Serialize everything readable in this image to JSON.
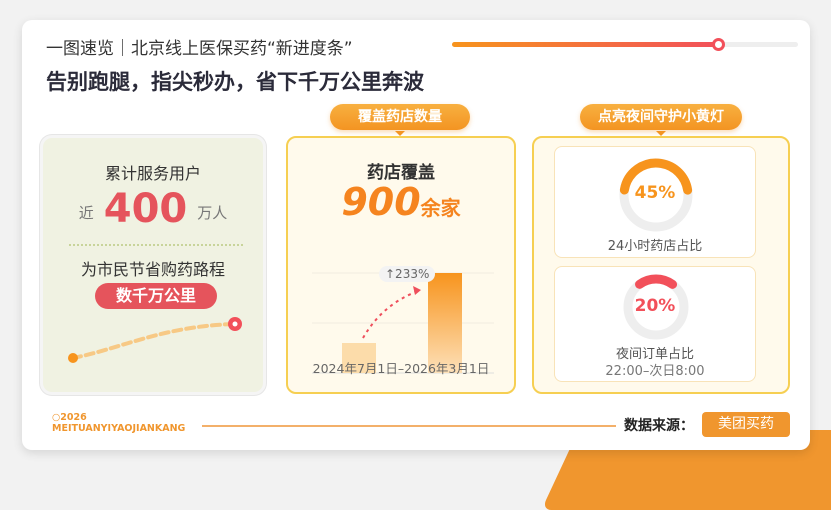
{
  "header": {
    "title": "一图速览｜北京线上医保买药“新进度条”",
    "subtitle": "告别跑腿，指尖秒办，省下千万公里奔波",
    "progress": 0.77
  },
  "users_panel": {
    "heading": "累计服务用户",
    "prefix": "近",
    "value": "400",
    "unit": "万人",
    "heading2": "为市民节省购药路程",
    "pill": "数千万公里"
  },
  "pharmacy_panel": {
    "tag": "覆盖药店数量",
    "heading": "药店覆盖",
    "value": "900",
    "unit": "余家",
    "growth": "233%",
    "date_range": "2024年7月1日–2026年3月1日"
  },
  "chart_data": {
    "type": "bar",
    "categories": [
      "2024年7月1日",
      "2026年3月1日"
    ],
    "values": [
      270,
      900
    ],
    "annotation": "↑233%"
  },
  "night_panel": {
    "tag": "点亮夜间守护小黄灯",
    "items": [
      {
        "percent": "45%",
        "value": 45,
        "label": "24小时药店占比",
        "note": "",
        "color": "#f7941d"
      },
      {
        "percent": "20%",
        "value": 20,
        "label": "夜间订单占比",
        "note": "22:00–次日8:00",
        "color": "#f2505a"
      }
    ]
  },
  "footer": {
    "year": "○2026",
    "brand": "MEITUANYIYAOJIANKANG",
    "source_label": "数据来源：",
    "source": "美团买药"
  },
  "colors": {
    "accent": "#f7941d",
    "red": "#e5545c"
  }
}
